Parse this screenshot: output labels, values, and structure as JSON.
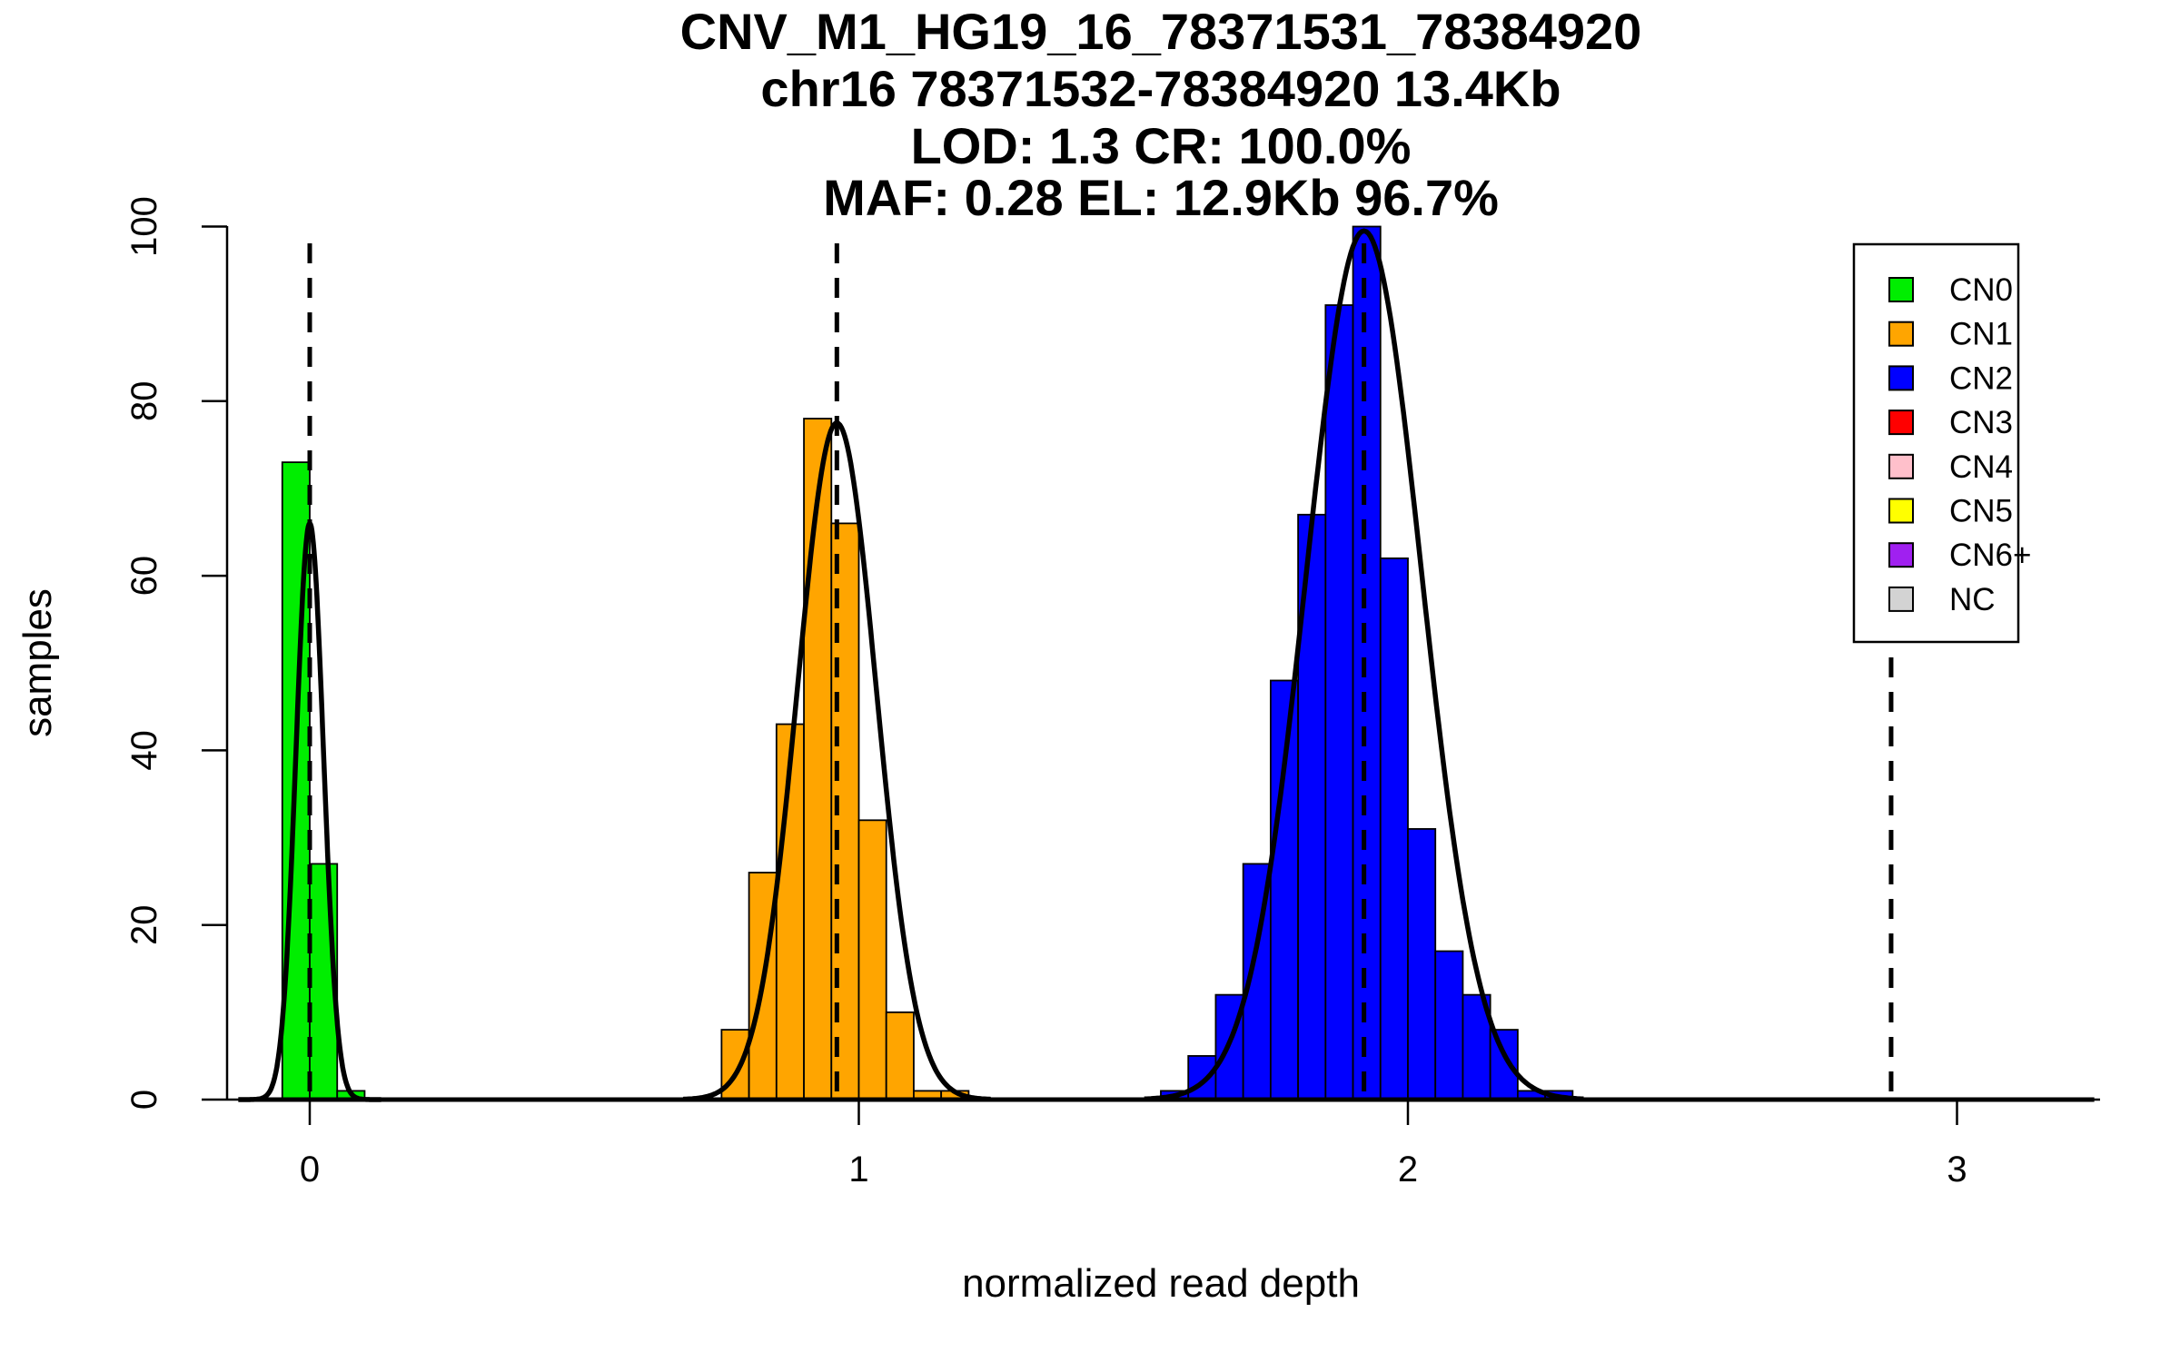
{
  "chart_data": {
    "type": "bar",
    "title_lines": [
      "CNV_M1_HG19_16_78371531_78384920",
      "chr16 78371532-78384920 13.4Kb",
      "LOD: 1.3 CR: 100.0%",
      "MAF: 0.28 EL: 12.9Kb 96.7%"
    ],
    "xlabel": "normalized read depth",
    "ylabel": "samples",
    "xlim": [
      -0.15,
      3.25
    ],
    "ylim": [
      0,
      100
    ],
    "xticks": [
      0,
      1,
      2,
      3
    ],
    "yticks": [
      0,
      20,
      40,
      60,
      80,
      100
    ],
    "bin_width": 0.05,
    "series": [
      {
        "name": "CN0",
        "color": "#00ee00",
        "bins": [
          [
            -0.025,
            73
          ],
          [
            0.025,
            27
          ],
          [
            0.075,
            1
          ]
        ]
      },
      {
        "name": "CN1",
        "color": "#ffa500",
        "bins": [
          [
            0.775,
            8
          ],
          [
            0.825,
            26
          ],
          [
            0.875,
            43
          ],
          [
            0.925,
            78
          ],
          [
            0.975,
            66
          ],
          [
            1.025,
            32
          ],
          [
            1.075,
            10
          ],
          [
            1.125,
            1
          ],
          [
            1.175,
            1
          ]
        ]
      },
      {
        "name": "CN2",
        "color": "#0000ff",
        "bins": [
          [
            1.575,
            1
          ],
          [
            1.625,
            5
          ],
          [
            1.675,
            12
          ],
          [
            1.725,
            27
          ],
          [
            1.775,
            48
          ],
          [
            1.825,
            67
          ],
          [
            1.875,
            91
          ],
          [
            1.925,
            100
          ],
          [
            1.975,
            62
          ],
          [
            2.025,
            31
          ],
          [
            2.075,
            17
          ],
          [
            2.125,
            12
          ],
          [
            2.175,
            8
          ],
          [
            2.225,
            1
          ],
          [
            2.275,
            1
          ]
        ]
      }
    ],
    "fitted_curves": [
      {
        "mean": 0.0,
        "sd": 0.025,
        "peak": 66,
        "range": [
          -0.13,
          0.13
        ]
      },
      {
        "mean": 0.96,
        "sd": 0.072,
        "peak": 77.5,
        "range": [
          0.68,
          1.24
        ]
      },
      {
        "mean": 1.92,
        "sd": 0.105,
        "peak": 99.5,
        "range": [
          1.52,
          2.32
        ]
      }
    ],
    "baseline_segments": [
      [
        -0.13,
        3.25
      ]
    ],
    "dashed_lines_x": [
      0.0,
      0.96,
      1.92,
      2.88
    ],
    "legend": {
      "placement": "top-right",
      "items": [
        {
          "label": "CN0",
          "color": "#00ee00"
        },
        {
          "label": "CN1",
          "color": "#ffa500"
        },
        {
          "label": "CN2",
          "color": "#0000ff"
        },
        {
          "label": "CN3",
          "color": "#ff0000"
        },
        {
          "label": "CN4",
          "color": "#ffc0cb"
        },
        {
          "label": "CN5",
          "color": "#ffff00"
        },
        {
          "label": "CN6+",
          "color": "#a020f0"
        },
        {
          "label": "NC",
          "color": "#d3d3d3"
        }
      ]
    }
  }
}
